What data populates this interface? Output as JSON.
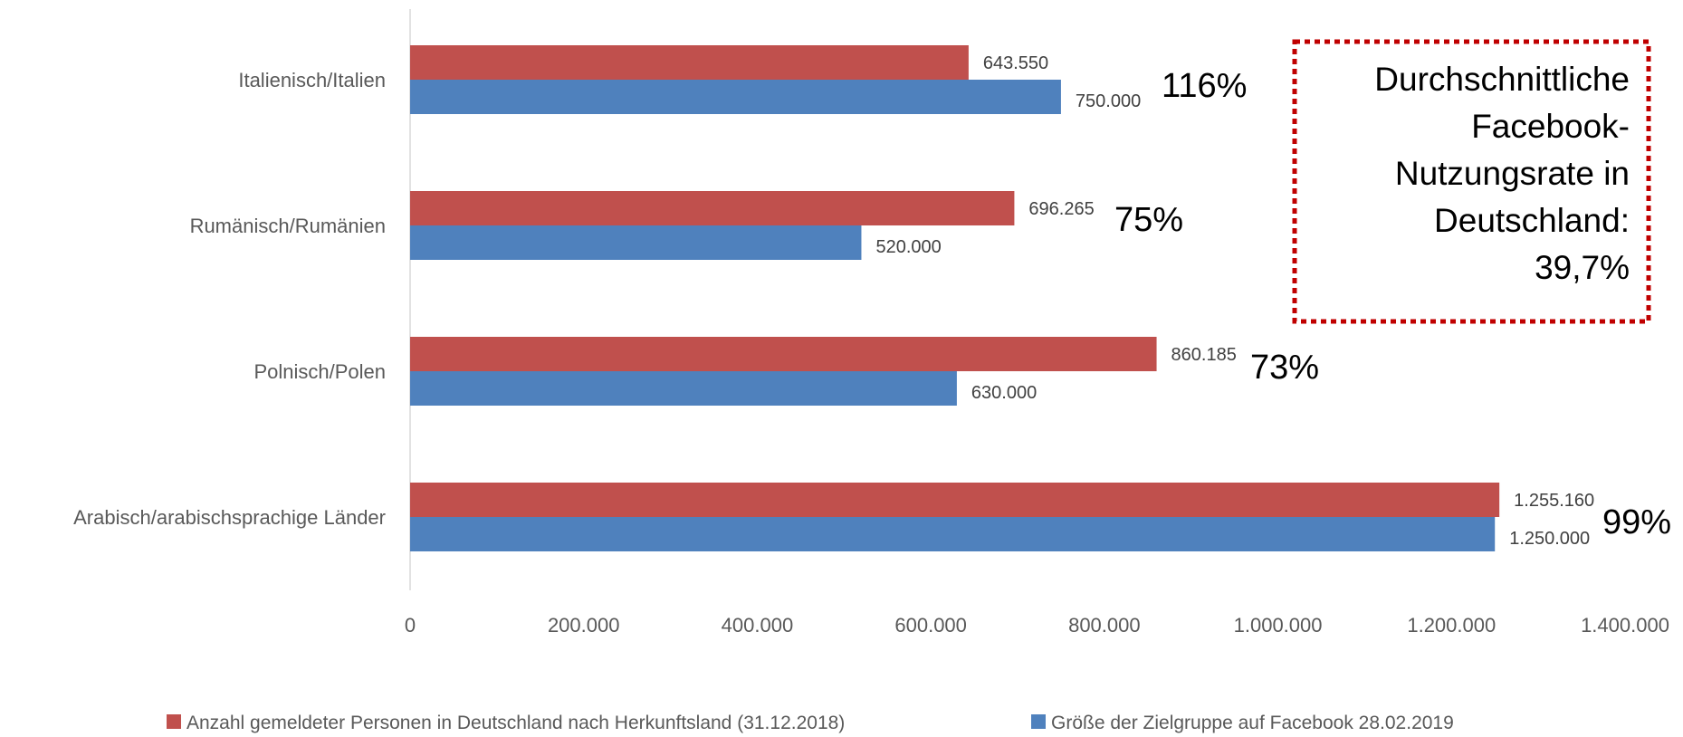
{
  "chart_data": {
    "type": "bar",
    "orientation": "horizontal",
    "categories": [
      "Italienisch/Italien",
      "Rumänisch/Rumänien",
      "Polnisch/Polen",
      "Arabisch/arabischsprachige Länder"
    ],
    "series": [
      {
        "name": "Anzahl gemeldeter Personen in Deutschland nach Herkunftsland (31.12.2018)",
        "color": "#c0504d",
        "values": [
          643550,
          696265,
          860185,
          1255160
        ],
        "labels": [
          "643.550",
          "696.265",
          "860.185",
          "1.255.160"
        ]
      },
      {
        "name": "Größe der Zielgruppe auf Facebook 28.02.2019",
        "color": "#4f81bd",
        "values": [
          750000,
          520000,
          630000,
          1250000
        ],
        "labels": [
          "750.000",
          "520.000",
          "630.000",
          "1.250.000"
        ]
      }
    ],
    "ratio_labels": [
      "116%",
      "75%",
      "73%",
      "99%"
    ],
    "xlim": [
      0,
      1400000
    ],
    "x_ticks": [
      0,
      200000,
      400000,
      600000,
      800000,
      1000000,
      1200000,
      1400000
    ],
    "x_tick_labels": [
      "0",
      "200.000",
      "400.000",
      "600.000",
      "800.000",
      "1.000.000",
      "1.200.000",
      "1.400.000"
    ],
    "grid": false,
    "legend_position": "bottom",
    "annotation": {
      "lines": [
        "Durchschnittliche",
        "Facebook-",
        "Nutzungsrate in",
        "Deutschland:",
        "39,7%"
      ],
      "border_color": "#c00000"
    }
  }
}
